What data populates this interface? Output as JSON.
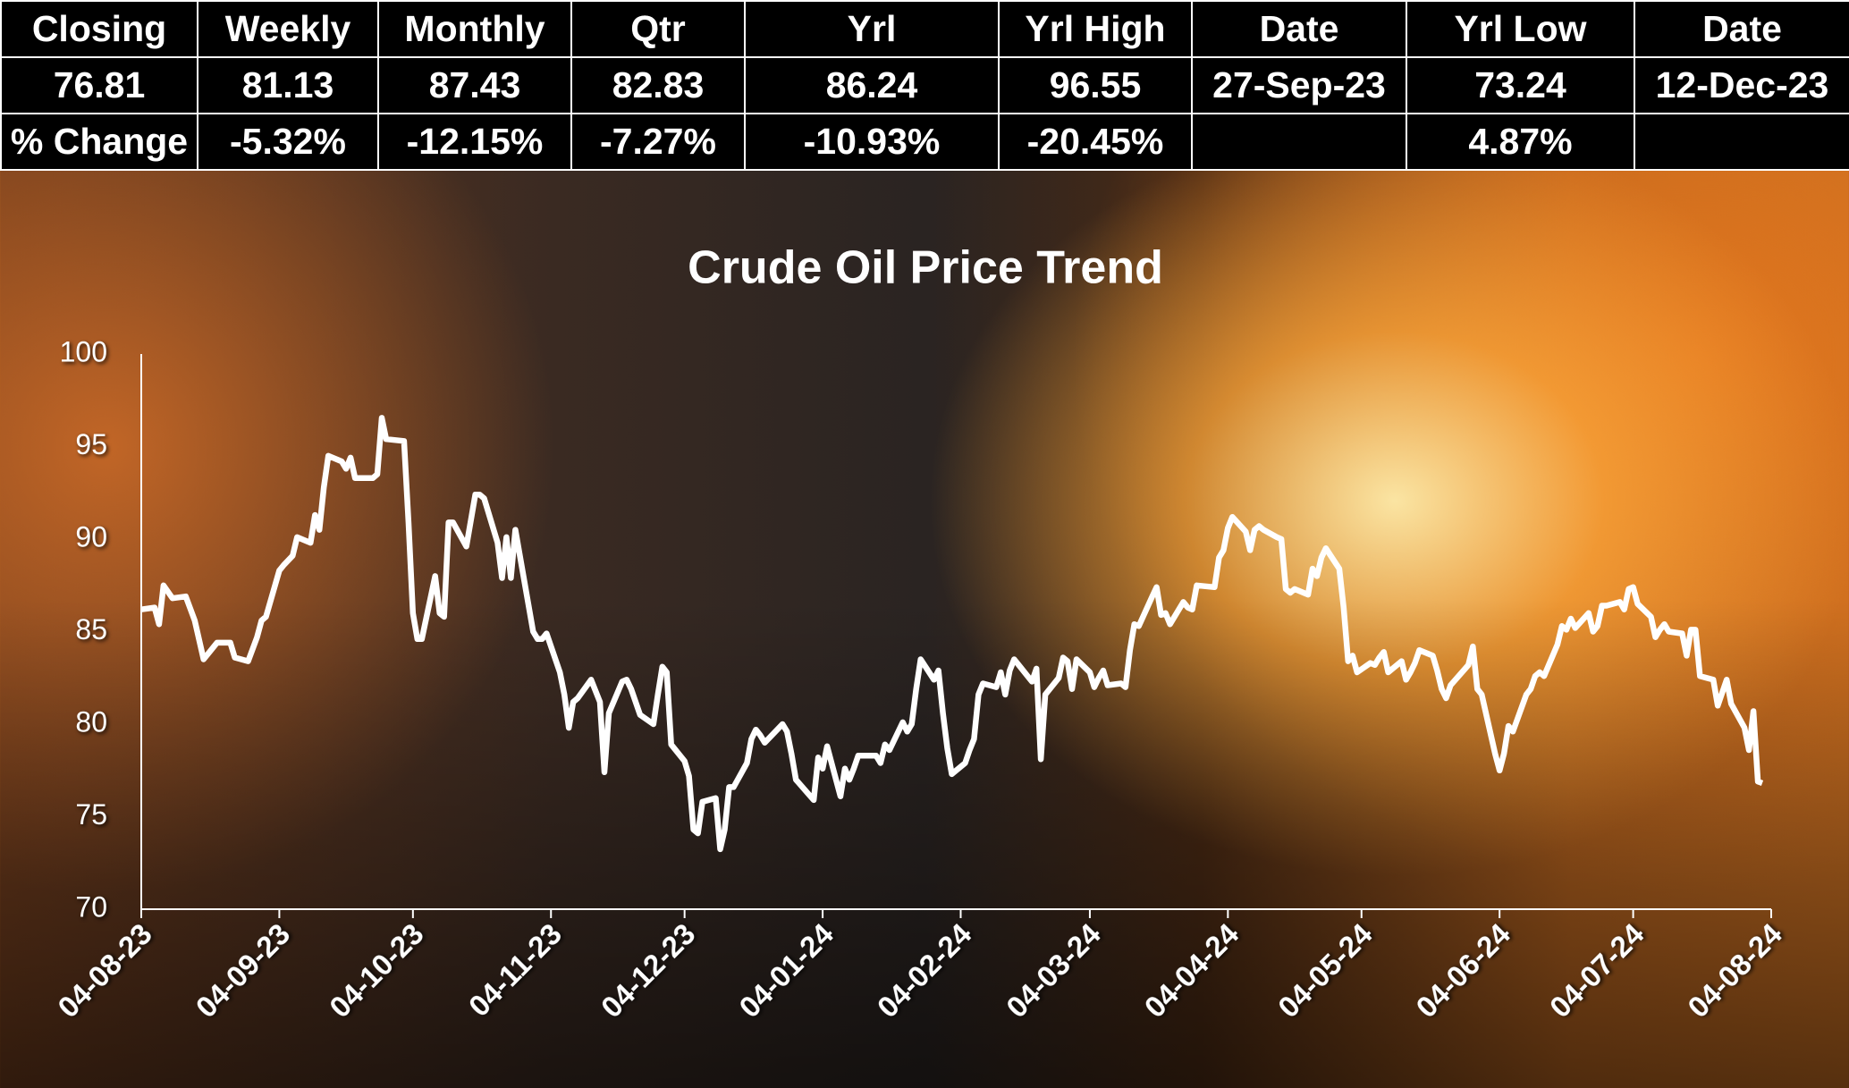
{
  "table": {
    "header": [
      "Closing",
      "Weekly",
      "Monthly",
      "Qtr",
      "Yrl",
      "Yrl High",
      "Date",
      "Yrl Low",
      "Date"
    ],
    "rows": [
      [
        "76.81",
        "81.13",
        "87.43",
        "82.83",
        "86.24",
        "96.55",
        "27-Sep-23",
        "73.24",
        "12-Dec-23"
      ],
      [
        "% Change",
        "-5.32%",
        "-12.15%",
        "-7.27%",
        "-10.93%",
        "-20.45%",
        null,
        "4.87%",
        null
      ]
    ]
  },
  "chart_data": {
    "type": "line",
    "title": "Crude Oil Price Trend",
    "color": "#ffffff",
    "grid": false,
    "xlim": [
      "2023-08-04",
      "2024-08-04"
    ],
    "ylim": [
      70,
      100
    ],
    "yticks": [
      70,
      75,
      80,
      85,
      90,
      95,
      100
    ],
    "xticks": [
      {
        "value": "2023-08-04",
        "label": "04-08-23"
      },
      {
        "value": "2023-09-04",
        "label": "04-09-23"
      },
      {
        "value": "2023-10-04",
        "label": "04-10-23"
      },
      {
        "value": "2023-11-04",
        "label": "04-11-23"
      },
      {
        "value": "2023-12-04",
        "label": "04-12-23"
      },
      {
        "value": "2024-01-04",
        "label": "04-01-24"
      },
      {
        "value": "2024-02-04",
        "label": "04-02-24"
      },
      {
        "value": "2024-03-04",
        "label": "04-03-24"
      },
      {
        "value": "2024-04-04",
        "label": "04-04-24"
      },
      {
        "value": "2024-05-04",
        "label": "04-05-24"
      },
      {
        "value": "2024-06-04",
        "label": "04-06-24"
      },
      {
        "value": "2024-07-04",
        "label": "04-07-24"
      },
      {
        "value": "2024-08-04",
        "label": "04-08-24"
      }
    ],
    "x": [
      "2023-08-04",
      "2023-08-07",
      "2023-08-08",
      "2023-08-09",
      "2023-08-11",
      "2023-08-14",
      "2023-08-16",
      "2023-08-18",
      "2023-08-21",
      "2023-08-24",
      "2023-08-25",
      "2023-08-28",
      "2023-08-30",
      "2023-08-31",
      "2023-09-01",
      "2023-09-04",
      "2023-09-05",
      "2023-09-07",
      "2023-09-08",
      "2023-09-11",
      "2023-09-12",
      "2023-09-13",
      "2023-09-14",
      "2023-09-15",
      "2023-09-18",
      "2023-09-19",
      "2023-09-20",
      "2023-09-21",
      "2023-09-25",
      "2023-09-26",
      "2023-09-27",
      "2023-09-28",
      "2023-10-02",
      "2023-10-03",
      "2023-10-04",
      "2023-10-05",
      "2023-10-06",
      "2023-10-09",
      "2023-10-10",
      "2023-10-11",
      "2023-10-12",
      "2023-10-13",
      "2023-10-16",
      "2023-10-18",
      "2023-10-19",
      "2023-10-20",
      "2023-10-23",
      "2023-10-24",
      "2023-10-25",
      "2023-10-26",
      "2023-10-27",
      "2023-10-31",
      "2023-11-01",
      "2023-11-02",
      "2023-11-03",
      "2023-11-06",
      "2023-11-07",
      "2023-11-08",
      "2023-11-09",
      "2023-11-10",
      "2023-11-13",
      "2023-11-15",
      "2023-11-16",
      "2023-11-17",
      "2023-11-20",
      "2023-11-21",
      "2023-11-22",
      "2023-11-24",
      "2023-11-27",
      "2023-11-28",
      "2023-11-29",
      "2023-11-30",
      "2023-12-01",
      "2023-12-04",
      "2023-12-05",
      "2023-12-06",
      "2023-12-07",
      "2023-12-08",
      "2023-12-11",
      "2023-12-12",
      "2023-12-13",
      "2023-12-14",
      "2023-12-15",
      "2023-12-18",
      "2023-12-19",
      "2023-12-20",
      "2023-12-21",
      "2023-12-22",
      "2023-12-26",
      "2023-12-27",
      "2023-12-28",
      "2023-12-29",
      "2024-01-02",
      "2024-01-03",
      "2024-01-04",
      "2024-01-05",
      "2024-01-08",
      "2024-01-09",
      "2024-01-10",
      "2024-01-11",
      "2024-01-12",
      "2024-01-16",
      "2024-01-17",
      "2024-01-18",
      "2024-01-19",
      "2024-01-22",
      "2024-01-23",
      "2024-01-24",
      "2024-01-25",
      "2024-01-26",
      "2024-01-29",
      "2024-01-30",
      "2024-01-31",
      "2024-02-01",
      "2024-02-02",
      "2024-02-05",
      "2024-02-06",
      "2024-02-07",
      "2024-02-08",
      "2024-02-09",
      "2024-02-12",
      "2024-02-13",
      "2024-02-14",
      "2024-02-15",
      "2024-02-16",
      "2024-02-20",
      "2024-02-21",
      "2024-02-22",
      "2024-02-23",
      "2024-02-26",
      "2024-02-27",
      "2024-02-28",
      "2024-02-29",
      "2024-03-01",
      "2024-03-04",
      "2024-03-05",
      "2024-03-06",
      "2024-03-07",
      "2024-03-08",
      "2024-03-11",
      "2024-03-12",
      "2024-03-13",
      "2024-03-14",
      "2024-03-15",
      "2024-03-18",
      "2024-03-19",
      "2024-03-20",
      "2024-03-21",
      "2024-03-22",
      "2024-03-25",
      "2024-03-26",
      "2024-03-27",
      "2024-03-28",
      "2024-04-01",
      "2024-04-02",
      "2024-04-03",
      "2024-04-04",
      "2024-04-05",
      "2024-04-08",
      "2024-04-09",
      "2024-04-10",
      "2024-04-11",
      "2024-04-12",
      "2024-04-15",
      "2024-04-16",
      "2024-04-17",
      "2024-04-18",
      "2024-04-19",
      "2024-04-22",
      "2024-04-23",
      "2024-04-24",
      "2024-04-25",
      "2024-04-26",
      "2024-04-29",
      "2024-04-30",
      "2024-05-01",
      "2024-05-02",
      "2024-05-03",
      "2024-05-06",
      "2024-05-07",
      "2024-05-08",
      "2024-05-09",
      "2024-05-10",
      "2024-05-13",
      "2024-05-14",
      "2024-05-15",
      "2024-05-16",
      "2024-05-17",
      "2024-05-20",
      "2024-05-21",
      "2024-05-22",
      "2024-05-23",
      "2024-05-24",
      "2024-05-28",
      "2024-05-29",
      "2024-05-30",
      "2024-05-31",
      "2024-06-03",
      "2024-06-04",
      "2024-06-05",
      "2024-06-06",
      "2024-06-07",
      "2024-06-10",
      "2024-06-11",
      "2024-06-12",
      "2024-06-13",
      "2024-06-14",
      "2024-06-17",
      "2024-06-18",
      "2024-06-19",
      "2024-06-20",
      "2024-06-21",
      "2024-06-24",
      "2024-06-25",
      "2024-06-26",
      "2024-06-27",
      "2024-06-28",
      "2024-07-01",
      "2024-07-02",
      "2024-07-03",
      "2024-07-04",
      "2024-07-05",
      "2024-07-08",
      "2024-07-09",
      "2024-07-10",
      "2024-07-11",
      "2024-07-12",
      "2024-07-15",
      "2024-07-16",
      "2024-07-17",
      "2024-07-18",
      "2024-07-19",
      "2024-07-22",
      "2024-07-23",
      "2024-07-24",
      "2024-07-25",
      "2024-07-26",
      "2024-07-29",
      "2024-07-30",
      "2024-07-31",
      "2024-08-01",
      "2024-08-02"
    ],
    "values": [
      86.2,
      86.3,
      85.4,
      87.5,
      86.8,
      86.9,
      85.6,
      83.5,
      84.4,
      84.4,
      83.6,
      83.4,
      84.7,
      85.6,
      85.8,
      88.3,
      88.6,
      89.1,
      90.1,
      89.8,
      91.3,
      90.5,
      92.8,
      94.5,
      94.2,
      93.8,
      94.4,
      93.3,
      93.3,
      93.5,
      96.55,
      95.4,
      95.3,
      90.9,
      86.0,
      84.6,
      84.6,
      88.0,
      86.0,
      85.8,
      90.9,
      90.9,
      89.6,
      92.4,
      92.4,
      92.2,
      89.8,
      87.9,
      90.1,
      87.9,
      90.5,
      85.0,
      84.6,
      84.6,
      84.9,
      82.8,
      81.6,
      79.8,
      81.2,
      81.4,
      82.4,
      81.2,
      77.4,
      80.6,
      82.3,
      82.4,
      81.9,
      80.5,
      80.0,
      81.6,
      83.1,
      82.8,
      78.9,
      78.0,
      77.2,
      74.3,
      74.1,
      75.8,
      76.0,
      73.24,
      74.3,
      76.6,
      76.6,
      77.9,
      79.2,
      79.7,
      79.4,
      79.0,
      80.0,
      79.6,
      78.4,
      77.0,
      75.9,
      78.2,
      77.6,
      78.8,
      76.1,
      77.6,
      77.0,
      77.6,
      78.3,
      78.3,
      77.9,
      78.9,
      78.6,
      80.1,
      79.6,
      80.0,
      81.9,
      83.5,
      82.4,
      82.9,
      80.6,
      78.7,
      77.3,
      77.9,
      78.6,
      79.2,
      81.6,
      82.2,
      82.0,
      82.8,
      81.6,
      82.9,
      83.5,
      82.3,
      83.0,
      78.1,
      81.6,
      82.5,
      83.6,
      83.4,
      81.9,
      83.5,
      82.8,
      82.0,
      82.5,
      82.9,
      82.1,
      82.2,
      82.0,
      84.0,
      85.4,
      85.3,
      86.9,
      87.4,
      85.9,
      86.0,
      85.4,
      86.6,
      86.3,
      86.2,
      87.5,
      87.4,
      89.0,
      89.4,
      90.6,
      91.2,
      90.4,
      89.4,
      90.5,
      90.7,
      90.5,
      90.1,
      90.0,
      87.3,
      87.1,
      87.3,
      87.0,
      88.4,
      88.0,
      89.0,
      89.5,
      88.4,
      86.3,
      83.4,
      83.7,
      82.8,
      83.3,
      83.2,
      83.6,
      83.9,
      82.8,
      83.4,
      82.4,
      82.8,
      83.3,
      84.0,
      83.7,
      82.9,
      81.9,
      81.4,
      82.1,
      83.2,
      84.2,
      81.9,
      81.6,
      78.4,
      77.5,
      78.4,
      79.9,
      79.6,
      81.6,
      81.9,
      82.6,
      82.8,
      82.6,
      84.3,
      85.3,
      85.1,
      85.7,
      85.2,
      86.0,
      85.0,
      85.3,
      86.4,
      86.4,
      86.6,
      86.2,
      87.3,
      87.4,
      86.5,
      85.8,
      84.7,
      85.1,
      85.4,
      85.0,
      84.9,
      83.7,
      85.1,
      85.1,
      82.6,
      82.4,
      81.0,
      81.7,
      82.4,
      81.1,
      79.8,
      78.6,
      80.7,
      76.9,
      76.81
    ]
  }
}
